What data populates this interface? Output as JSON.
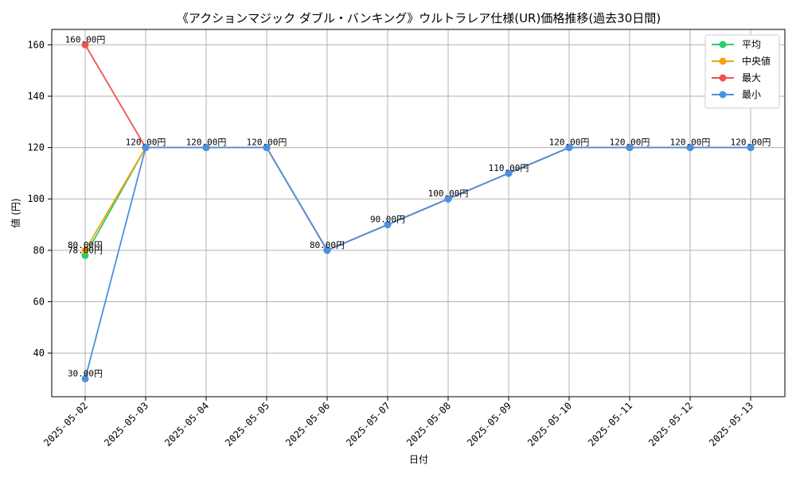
{
  "chart_data": {
    "type": "line",
    "title": "《アクションマジック ダブル・バンキング》ウルトラレア仕様(UR)価格推移(過去30日間)",
    "xlabel": "日付",
    "ylabel": "値 (円)",
    "categories": [
      "2025-05-02",
      "2025-05-03",
      "2025-05-04",
      "2025-05-05",
      "2025-05-06",
      "2025-05-07",
      "2025-05-08",
      "2025-05-09",
      "2025-05-10",
      "2025-05-11",
      "2025-05-12",
      "2025-05-13"
    ],
    "ylim": [
      23,
      166
    ],
    "yticks": [
      40,
      60,
      80,
      100,
      120,
      140,
      160
    ],
    "grid": true,
    "legend_position": "top-right",
    "series": [
      {
        "name": "平均",
        "color": "#2ecc71",
        "values": [
          78,
          120,
          120,
          120,
          80,
          90,
          100,
          110,
          120,
          120,
          120,
          120
        ]
      },
      {
        "name": "中央値",
        "color": "#f0a30a",
        "values": [
          80,
          120,
          120,
          120,
          80,
          90,
          100,
          110,
          120,
          120,
          120,
          120
        ]
      },
      {
        "name": "最大",
        "color": "#ef5350",
        "values": [
          160,
          120,
          120,
          120,
          80,
          90,
          100,
          110,
          120,
          120,
          120,
          120
        ]
      },
      {
        "name": "最小",
        "color": "#4a90e2",
        "values": [
          30,
          120,
          120,
          120,
          80,
          90,
          100,
          110,
          120,
          120,
          120,
          120
        ]
      }
    ],
    "data_labels": [
      {
        "x": "2025-05-02",
        "y": 160,
        "text": "160.00円"
      },
      {
        "x": "2025-05-02",
        "y": 80,
        "text": "80.00円"
      },
      {
        "x": "2025-05-02",
        "y": 78,
        "text": "78.00円"
      },
      {
        "x": "2025-05-02",
        "y": 30,
        "text": "30.00円"
      },
      {
        "x": "2025-05-03",
        "y": 120,
        "text": "120.00円"
      },
      {
        "x": "2025-05-04",
        "y": 120,
        "text": "120.00円"
      },
      {
        "x": "2025-05-05",
        "y": 120,
        "text": "120.00円"
      },
      {
        "x": "2025-05-06",
        "y": 80,
        "text": "80.00円"
      },
      {
        "x": "2025-05-07",
        "y": 90,
        "text": "90.00円"
      },
      {
        "x": "2025-05-08",
        "y": 100,
        "text": "100.00円"
      },
      {
        "x": "2025-05-09",
        "y": 110,
        "text": "110.00円"
      },
      {
        "x": "2025-05-10",
        "y": 120,
        "text": "120.00円"
      },
      {
        "x": "2025-05-11",
        "y": 120,
        "text": "120.00円"
      },
      {
        "x": "2025-05-12",
        "y": 120,
        "text": "120.00円"
      },
      {
        "x": "2025-05-13",
        "y": 120,
        "text": "120.00円"
      }
    ]
  }
}
